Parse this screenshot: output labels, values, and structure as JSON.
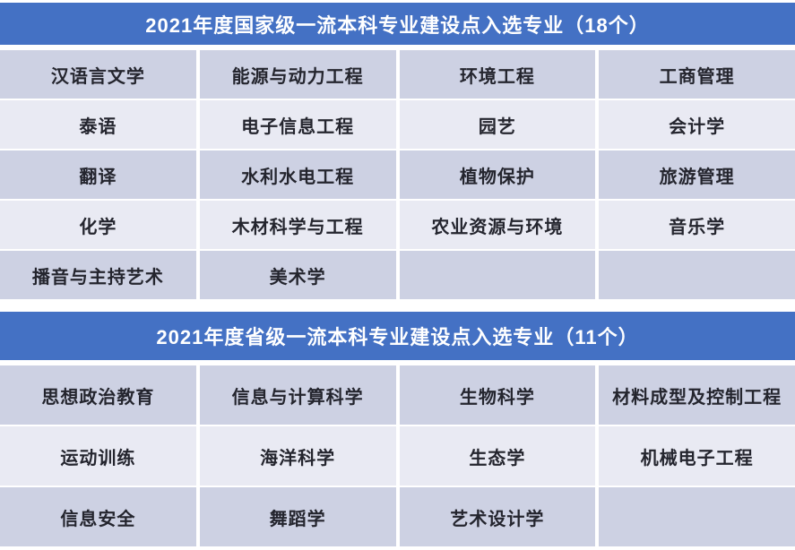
{
  "chart_data": [
    {
      "type": "table",
      "title": "2021年度国家级一流本科专业建设点入选专业（18个）",
      "count": 18,
      "columns": 4,
      "rows": [
        [
          "汉语言文学",
          "能源与动力工程",
          "环境工程",
          "工商管理"
        ],
        [
          "泰语",
          "电子信息工程",
          "园艺",
          "会计学"
        ],
        [
          "翻译",
          "水利水电工程",
          "植物保护",
          "旅游管理"
        ],
        [
          "化学",
          "木材科学与工程",
          "农业资源与环境",
          "音乐学"
        ],
        [
          "播音与主持艺术",
          "美术学",
          "",
          ""
        ]
      ]
    },
    {
      "type": "table",
      "title": "2021年度省级一流本科专业建设点入选专业（11个）",
      "count": 11,
      "columns": 4,
      "rows": [
        [
          "思想政治教育",
          "信息与计算科学",
          "生物科学",
          "材料成型及控制工程"
        ],
        [
          "运动训练",
          "海洋科学",
          "生态学",
          "机械电子工程"
        ],
        [
          "信息安全",
          "舞蹈学",
          "艺术设计学",
          ""
        ]
      ]
    }
  ],
  "colors": {
    "header_background": "#4471c4",
    "header_text": "#ffffff",
    "row_dark": "#cdd1e3",
    "row_light": "#e9eaf3",
    "cell_text": "#24252e",
    "gutter": "#ffffff"
  }
}
